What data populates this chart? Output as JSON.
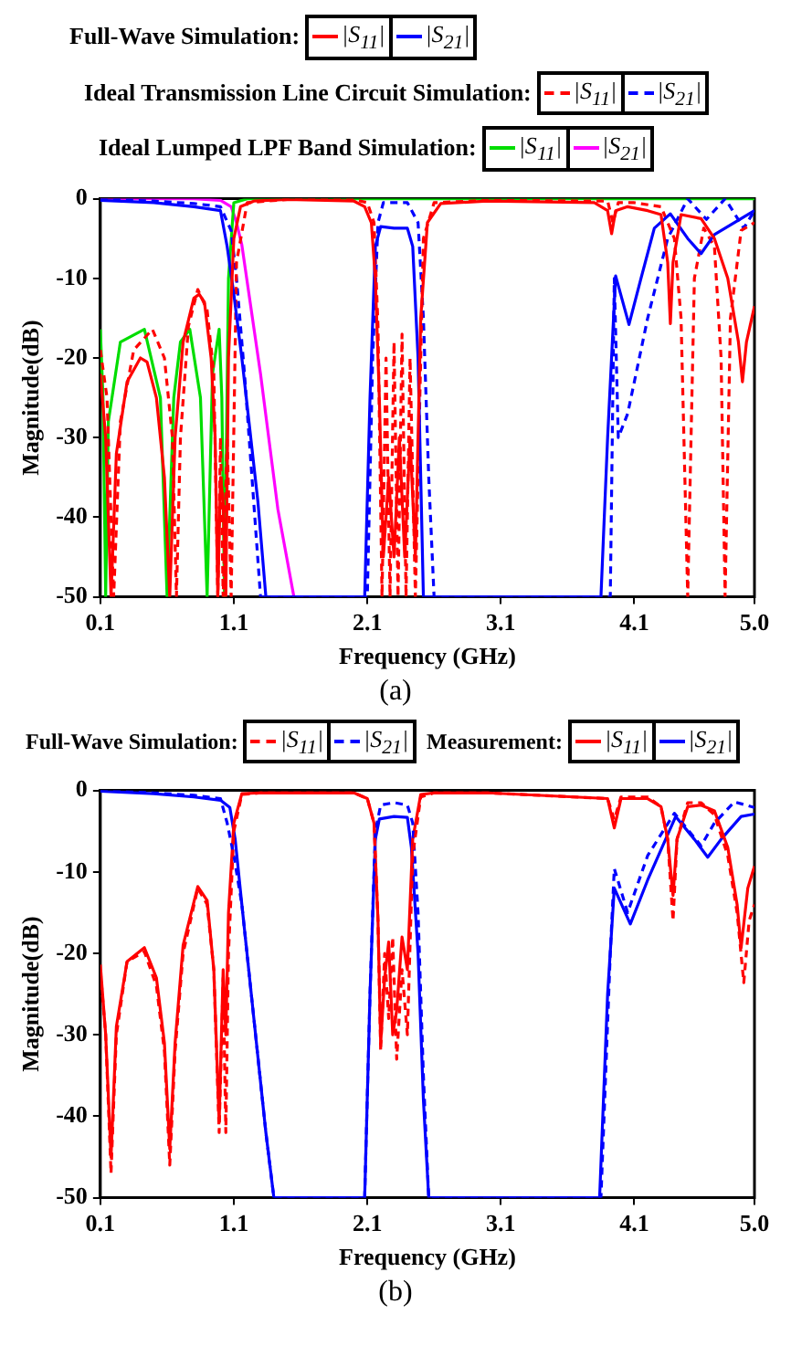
{
  "chart_data": [
    {
      "type": "line",
      "xlabel": "Frequency (GHz)",
      "ylabel": "Magnitude(dB)",
      "xlim": [
        0.1,
        5.0
      ],
      "xticks": [
        0.1,
        1.1,
        2.1,
        3.1,
        4.1,
        {
          "value": 5.0,
          "label": "5.0"
        }
      ],
      "ylim": [
        -50,
        0
      ],
      "yticks": [
        -50,
        -40,
        -30,
        -20,
        -10,
        0
      ],
      "legend": "top",
      "marker": "none",
      "annotations": [
        "Full-Wave Simulation:",
        "Ideal Transmission Line Circuit Simulation:",
        "Ideal Lumped LPF Band Simulation:",
        "(a)"
      ],
      "series": [
        {
          "name": "|S$_{11}$|",
          "color": "#ff0000",
          "line_style": "solid",
          "x": [
            0.1,
            0.14,
            0.18,
            0.22,
            0.3,
            0.4,
            0.45,
            0.52,
            0.58,
            0.62,
            0.66,
            0.72,
            0.8,
            0.84,
            0.88,
            0.93,
            0.96,
            0.98,
            1.0,
            1.02,
            1.04,
            1.06,
            1.1,
            1.15,
            1.25,
            1.5,
            2.0,
            2.08,
            2.13,
            2.16,
            2.19,
            2.22,
            2.26,
            2.3,
            2.34,
            2.38,
            2.42,
            2.46,
            2.5,
            2.55,
            2.65,
            3.0,
            3.8,
            3.9,
            3.93,
            3.96,
            4.05,
            4.2,
            4.3,
            4.35,
            4.37,
            4.39,
            4.45,
            4.6,
            4.7,
            4.8,
            4.88,
            4.91,
            4.94,
            5.0
          ],
          "values": [
            -22,
            -30,
            -50,
            -32,
            -23,
            -20,
            -20.5,
            -25,
            -35,
            -50,
            -30,
            -18,
            -12.5,
            -12,
            -13,
            -20,
            -30,
            -50,
            -35,
            -38,
            -50,
            -20,
            -5,
            -1,
            -0.3,
            -0.1,
            -0.3,
            -1,
            -3,
            -10,
            -25,
            -45,
            -35,
            -45,
            -30,
            -45,
            -30,
            -45,
            -15,
            -3,
            -0.6,
            -0.3,
            -0.5,
            -1.5,
            -4.4,
            -1.5,
            -1,
            -1.5,
            -2,
            -8,
            -15.7,
            -8,
            -2,
            -2.5,
            -5,
            -10,
            -18,
            -23,
            -18,
            -13.5
          ]
        },
        {
          "name": "|S$_{21}$|",
          "color": "#0000ff",
          "line_style": "solid",
          "x": [
            0.1,
            0.5,
            0.8,
            1.0,
            1.05,
            1.1,
            1.16,
            1.22,
            1.28,
            1.34,
            2.08,
            2.12,
            2.16,
            2.2,
            2.3,
            2.4,
            2.44,
            2.48,
            2.52,
            3.85,
            3.9,
            3.96,
            4.06,
            4.15,
            4.25,
            4.37,
            4.5,
            4.6,
            4.7,
            4.78,
            4.9,
            5.0
          ],
          "values": [
            -0.2,
            -0.5,
            -1,
            -1.5,
            -6,
            -12,
            -20,
            -29,
            -38,
            -50,
            -50,
            -25,
            -6,
            -3.5,
            -3.7,
            -3.7,
            -6,
            -20,
            -50,
            -50,
            -30,
            -9.7,
            -15.8,
            -10,
            -3.7,
            -1.9,
            -5,
            -6.9,
            -4.5,
            -3.7,
            -2.5,
            -1.5
          ]
        },
        {
          "name": "|S$_{11}$|",
          "color": "#ff0000",
          "line_style": "dashed",
          "x": [
            0.1,
            0.15,
            0.2,
            0.25,
            0.35,
            0.49,
            0.58,
            0.64,
            0.67,
            0.7,
            0.76,
            0.83,
            0.9,
            0.95,
            0.98,
            1.0,
            1.02,
            1.05,
            1.08,
            1.12,
            1.2,
            1.5,
            2.0,
            2.1,
            2.15,
            2.18,
            2.21,
            2.24,
            2.27,
            2.3,
            2.33,
            2.36,
            2.39,
            2.42,
            2.46,
            2.52,
            2.6,
            3.0,
            3.9,
            3.94,
            3.98,
            4.1,
            4.3,
            4.4,
            4.45,
            4.5,
            4.55,
            4.62,
            4.7,
            4.75,
            4.78,
            4.82,
            4.9,
            5.0
          ],
          "values": [
            -19,
            -25,
            -50,
            -28,
            -19,
            -16.4,
            -20,
            -30,
            -50,
            -30,
            -16,
            -11.4,
            -14,
            -22,
            -50,
            -30,
            -50,
            -30,
            -50,
            -8,
            -0.5,
            -0.1,
            -0.1,
            -0.5,
            -3,
            -16,
            -50,
            -20,
            -50,
            -18,
            -50,
            -17,
            -50,
            -20,
            -50,
            -5,
            -0.5,
            -0.2,
            -0.3,
            -3,
            -0.5,
            -0.5,
            -1,
            -5,
            -15,
            -50,
            -10,
            -3.7,
            -6,
            -20,
            -50,
            -15,
            -4,
            -3
          ]
        },
        {
          "name": "|S$_{21}$|",
          "color": "#0000ff",
          "line_style": "dashed",
          "x": [
            0.1,
            0.5,
            0.8,
            1.0,
            1.08,
            1.12,
            1.18,
            1.24,
            1.3,
            2.1,
            2.14,
            2.18,
            2.22,
            2.4,
            2.48,
            2.52,
            2.56,
            2.6,
            3.92,
            3.95,
            3.98,
            4.05,
            4.2,
            4.35,
            4.5,
            4.64,
            4.78,
            4.92,
            5.0
          ],
          "values": [
            0,
            -0.3,
            -0.6,
            -1,
            -4,
            -10,
            -22,
            -36,
            -50,
            -50,
            -20,
            -3,
            -0.5,
            -0.5,
            -3,
            -15,
            -35,
            -50,
            -50,
            -10,
            -30,
            -27,
            -15,
            -5,
            0,
            -2.6,
            0,
            -3.7,
            -1.5
          ]
        },
        {
          "name": "|S$_{11}$|",
          "color": "#00dd00",
          "line_style": "solid",
          "x": [
            0.1,
            0.12,
            0.14,
            0.16,
            0.25,
            0.43,
            0.55,
            0.6,
            0.65,
            0.7,
            0.77,
            0.85,
            0.9,
            0.94,
            0.99,
            1.01,
            1.03,
            1.06,
            1.1,
            1.2,
            2.0,
            3.0,
            4.0,
            5.0
          ],
          "values": [
            -16.4,
            -25,
            -50,
            -28,
            -18,
            -16.4,
            -25,
            -50,
            -25,
            -18,
            -16.4,
            -25,
            -50,
            -22,
            -16.4,
            -25,
            -50,
            -10,
            -0.5,
            0,
            0,
            0,
            0,
            0
          ]
        },
        {
          "name": "|S$_{21}$|",
          "color": "#ff00ff",
          "line_style": "solid",
          "x": [
            0.1,
            0.8,
            1.0,
            1.08,
            1.12,
            1.16,
            1.3,
            1.43,
            1.55
          ],
          "values": [
            0,
            0,
            -0.2,
            -1,
            -3,
            -5.8,
            -22,
            -39,
            -50
          ]
        }
      ]
    },
    {
      "type": "line",
      "xlabel": "Frequency (GHz)",
      "ylabel": "Magnitude(dB)",
      "xlim": [
        0.1,
        5.0
      ],
      "xticks": [
        0.1,
        1.1,
        2.1,
        3.1,
        4.1,
        {
          "value": 5.0,
          "label": "5.0"
        }
      ],
      "ylim": [
        -50,
        0
      ],
      "yticks": [
        -50,
        -40,
        -30,
        -20,
        -10,
        0
      ],
      "legend": "top",
      "marker": "none",
      "annotations": [
        "Full-Wave Simulation:",
        "Measurement:",
        "(b)"
      ],
      "series": [
        {
          "name": "|S$_{11}$|",
          "color": "#ff0000",
          "line_style": "dashed",
          "x": [
            0.1,
            0.14,
            0.18,
            0.22,
            0.3,
            0.43,
            0.52,
            0.58,
            0.62,
            0.66,
            0.72,
            0.83,
            0.9,
            0.95,
            0.99,
            1.02,
            1.04,
            1.06,
            1.1,
            1.16,
            1.3,
            2.0,
            2.1,
            2.15,
            2.18,
            2.2,
            2.23,
            2.26,
            2.29,
            2.32,
            2.36,
            2.4,
            2.44,
            2.5,
            2.6,
            3.0,
            3.9,
            3.95,
            4.0,
            4.2,
            4.3,
            4.35,
            4.39,
            4.42,
            4.5,
            4.6,
            4.7,
            4.8,
            4.87,
            4.92,
            4.96,
            5.0
          ],
          "values": [
            -22,
            -30,
            -47,
            -30,
            -21,
            -19.8,
            -24,
            -32,
            -46,
            -32,
            -20,
            -12,
            -14,
            -22,
            -42,
            -23,
            -42,
            -20,
            -5,
            -0.5,
            -0.3,
            -0.3,
            -1,
            -4,
            -16,
            -32,
            -20,
            -28,
            -18,
            -33,
            -22,
            -30,
            -8,
            -0.8,
            -0.3,
            -0.3,
            -1,
            -3.6,
            -0.8,
            -0.8,
            -2,
            -6,
            -16,
            -6,
            -1.5,
            -1.5,
            -3,
            -8,
            -15,
            -23.6,
            -16,
            -14
          ]
        },
        {
          "name": "|S$_{21}$|",
          "color": "#0000ff",
          "line_style": "dashed",
          "x": [
            0.1,
            0.5,
            0.8,
            1.0,
            1.05,
            1.1,
            1.16,
            1.25,
            1.34,
            1.4,
            2.08,
            2.12,
            2.16,
            2.2,
            2.3,
            2.4,
            2.44,
            2.48,
            2.52,
            2.56,
            3.85,
            3.92,
            3.95,
            4.05,
            4.2,
            4.4,
            4.6,
            4.7,
            4.85,
            5.0
          ],
          "values": [
            0,
            -0.3,
            -0.6,
            -1,
            -4,
            -8,
            -14,
            -28,
            -42,
            -50,
            -50,
            -25,
            -5,
            -1.8,
            -1.5,
            -1.8,
            -4,
            -15,
            -35,
            -50,
            -50,
            -20,
            -9.6,
            -15,
            -8,
            -2.8,
            -6.8,
            -4,
            -1.4,
            -2.1
          ]
        },
        {
          "name": "|S$_{11}$|",
          "color": "#ff0000",
          "line_style": "solid",
          "x": [
            0.1,
            0.14,
            0.18,
            0.22,
            0.3,
            0.43,
            0.52,
            0.58,
            0.62,
            0.66,
            0.72,
            0.83,
            0.9,
            0.95,
            0.99,
            1.02,
            1.04,
            1.06,
            1.1,
            1.16,
            1.3,
            2.0,
            2.1,
            2.15,
            2.18,
            2.2,
            2.23,
            2.26,
            2.29,
            2.32,
            2.36,
            2.4,
            2.44,
            2.5,
            2.6,
            3.0,
            3.9,
            3.95,
            4.0,
            4.2,
            4.3,
            4.35,
            4.39,
            4.42,
            4.5,
            4.6,
            4.7,
            4.8,
            4.87,
            4.9,
            4.95,
            5.0
          ],
          "values": [
            -21.4,
            -30,
            -45,
            -29,
            -21,
            -19.3,
            -23,
            -31,
            -44,
            -31,
            -19,
            -11.8,
            -13.5,
            -22,
            -40.7,
            -22,
            -30,
            -15,
            -4,
            -0.4,
            -0.3,
            -0.3,
            -1,
            -4,
            -16,
            -31,
            -23,
            -18.6,
            -30,
            -27,
            -18,
            -22,
            -6,
            -0.5,
            -0.3,
            -0.3,
            -1,
            -4.6,
            -1,
            -1,
            -2,
            -6,
            -12.9,
            -6,
            -2,
            -1.8,
            -2.5,
            -7,
            -14,
            -19.3,
            -12,
            -9.3
          ]
        },
        {
          "name": "|S$_{21}$|",
          "color": "#0000ff",
          "line_style": "solid",
          "x": [
            0.1,
            0.5,
            0.8,
            1.0,
            1.07,
            1.11,
            1.16,
            1.25,
            1.34,
            1.4,
            2.08,
            2.12,
            2.16,
            2.19,
            2.3,
            2.4,
            2.43,
            2.48,
            2.52,
            2.56,
            3.84,
            3.9,
            3.95,
            4.07,
            4.2,
            4.41,
            4.55,
            4.65,
            4.75,
            4.9,
            5.0
          ],
          "values": [
            -0.1,
            -0.4,
            -0.8,
            -1.2,
            -2.1,
            -6,
            -14,
            -28,
            -42,
            -50,
            -50,
            -25,
            -6,
            -3.5,
            -3.2,
            -3.3,
            -7,
            -20,
            -38,
            -50,
            -50,
            -25,
            -12,
            -16.4,
            -11,
            -3.2,
            -6,
            -8.2,
            -6,
            -3.2,
            -2.9
          ]
        }
      ]
    }
  ]
}
